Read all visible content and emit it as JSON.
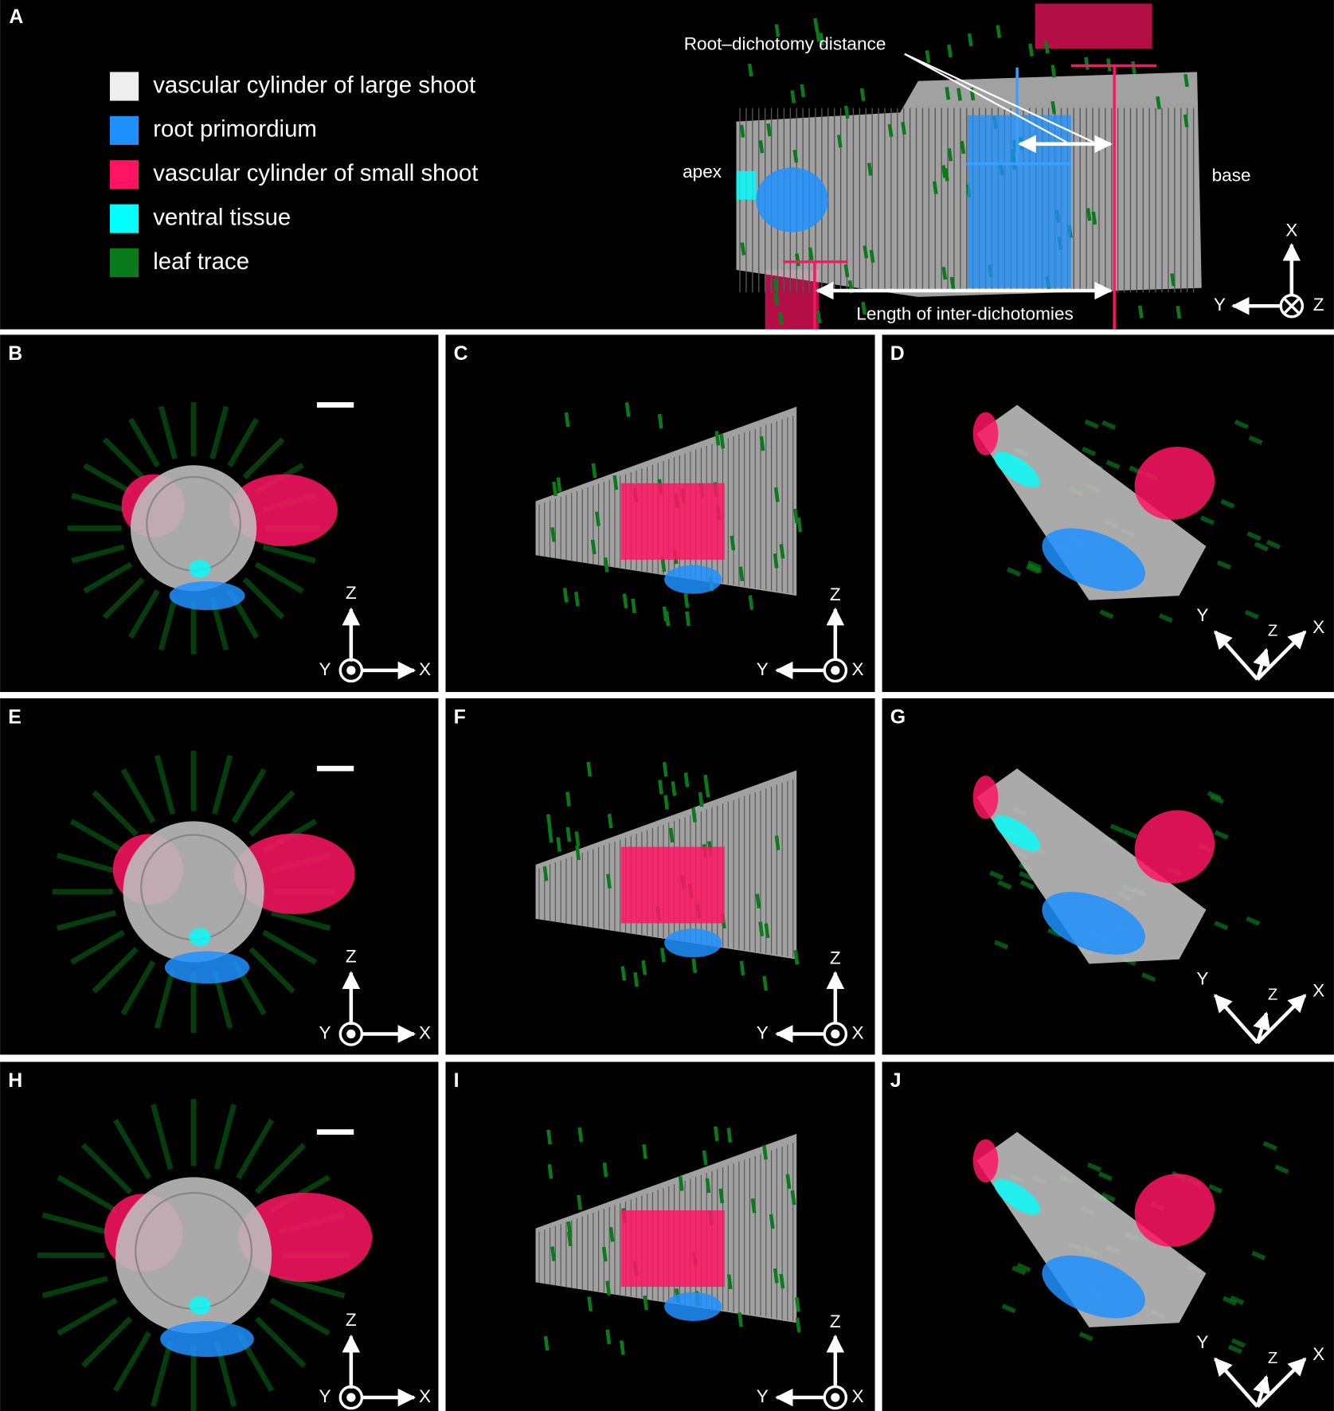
{
  "panel_a": {
    "label": "A",
    "legend": [
      {
        "name": "vascular cylinder of large shoot",
        "color": "#eeeeee"
      },
      {
        "name": "root primordium",
        "color": "#1e90ff"
      },
      {
        "name": "vascular cylinder of small shoot",
        "color": "#ff1464"
      },
      {
        "name": "ventral tissue",
        "color": "#00ffff"
      },
      {
        "name": "leaf trace",
        "color": "#0a7a1a"
      }
    ],
    "annotations": {
      "root_dichotomy": "Root–dichotomy distance",
      "inter_dichotomies": "Length of inter-dichotomies",
      "apex": "apex",
      "base": "base"
    },
    "axes": {
      "x": "X",
      "y": "Y",
      "z": "Z"
    }
  },
  "panels": [
    {
      "label": "B",
      "axes": {
        "x": "X",
        "y": "Y",
        "z": "Z"
      }
    },
    {
      "label": "C",
      "axes": {
        "x": "X",
        "y": "Y",
        "z": "Z"
      }
    },
    {
      "label": "D",
      "axes": {
        "x": "X",
        "y": "Y",
        "z": "Z"
      }
    },
    {
      "label": "E",
      "axes": {
        "x": "X",
        "y": "Y",
        "z": "Z"
      }
    },
    {
      "label": "F",
      "axes": {
        "x": "X",
        "y": "Y",
        "z": "Z"
      }
    },
    {
      "label": "G",
      "axes": {
        "x": "X",
        "y": "Y",
        "z": "Z"
      }
    },
    {
      "label": "H",
      "axes": {
        "x": "X",
        "y": "Y",
        "z": "Z"
      }
    },
    {
      "label": "I",
      "axes": {
        "x": "X",
        "y": "Y",
        "z": "Z"
      }
    },
    {
      "label": "J",
      "axes": {
        "x": "X",
        "y": "Y",
        "z": "Z"
      }
    }
  ]
}
